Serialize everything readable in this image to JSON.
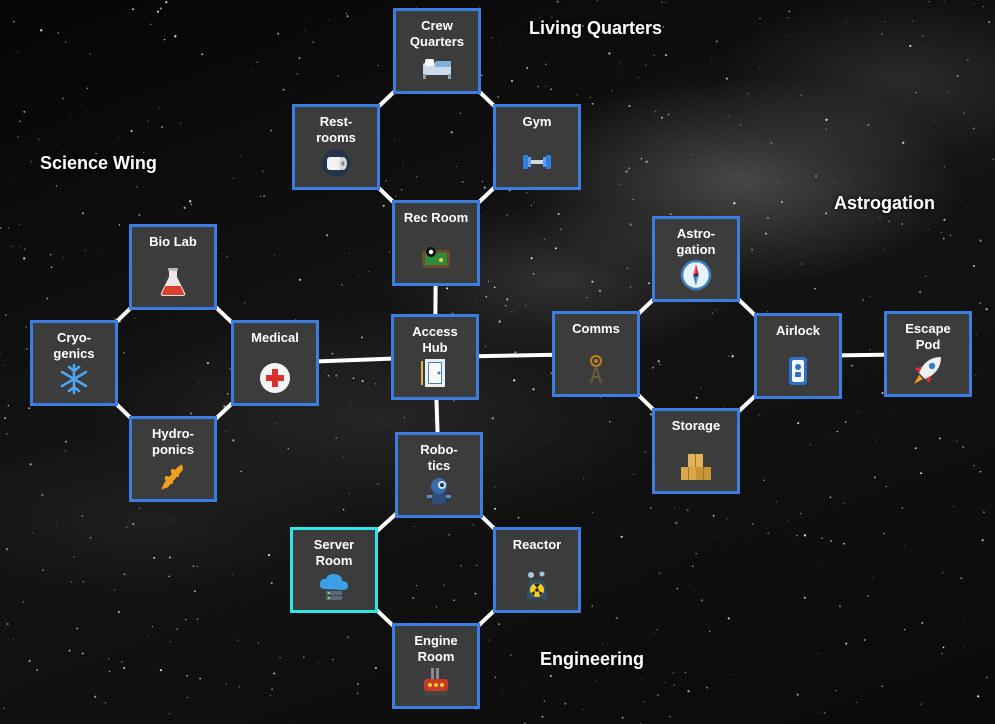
{
  "regions": {
    "living": "Living Quarters",
    "science": "Science Wing",
    "astro": "Astrogation",
    "engineering": "Engineering"
  },
  "rooms": {
    "crew_quarters": {
      "name": "Crew\nQuarters",
      "icon": "bed-icon"
    },
    "restrooms": {
      "name": "Rest-\nrooms",
      "icon": "toilet-paper-icon"
    },
    "gym": {
      "name": "Gym",
      "icon": "dumbbell-icon"
    },
    "rec_room": {
      "name": "Rec Room",
      "icon": "pool-table-icon"
    },
    "bio_lab": {
      "name": "Bio Lab",
      "icon": "flask-icon"
    },
    "cryogenics": {
      "name": "Cryo-\ngenics",
      "icon": "snowflake-icon"
    },
    "medical": {
      "name": "Medical",
      "icon": "medical-cross-icon"
    },
    "hydroponics": {
      "name": "Hydro-\nponics",
      "icon": "wheat-icon"
    },
    "access_hub": {
      "name": "Access\nHub",
      "icon": "hatch-door-icon"
    },
    "comms": {
      "name": "Comms",
      "icon": "antenna-icon"
    },
    "astrogation": {
      "name": "Astro-\ngation",
      "icon": "compass-icon"
    },
    "airlock": {
      "name": "Airlock",
      "icon": "airlock-door-icon"
    },
    "escape_pod": {
      "name": "Escape\nPod",
      "icon": "rocket-icon"
    },
    "storage": {
      "name": "Storage",
      "icon": "boxes-icon"
    },
    "robotics": {
      "name": "Robo-\ntics",
      "icon": "robot-icon"
    },
    "server_room": {
      "name": "Server\nRoom",
      "icon": "cloud-server-icon"
    },
    "reactor": {
      "name": "Reactor",
      "icon": "radiation-icon"
    },
    "engine_room": {
      "name": "Engine\nRoom",
      "icon": "engine-icon"
    }
  },
  "selected_room": "server_room",
  "colors": {
    "room_border": "#3b7de0",
    "selected_border": "#2ee6e6",
    "room_fill": "#3c3c3c",
    "link": "#ffffff"
  }
}
